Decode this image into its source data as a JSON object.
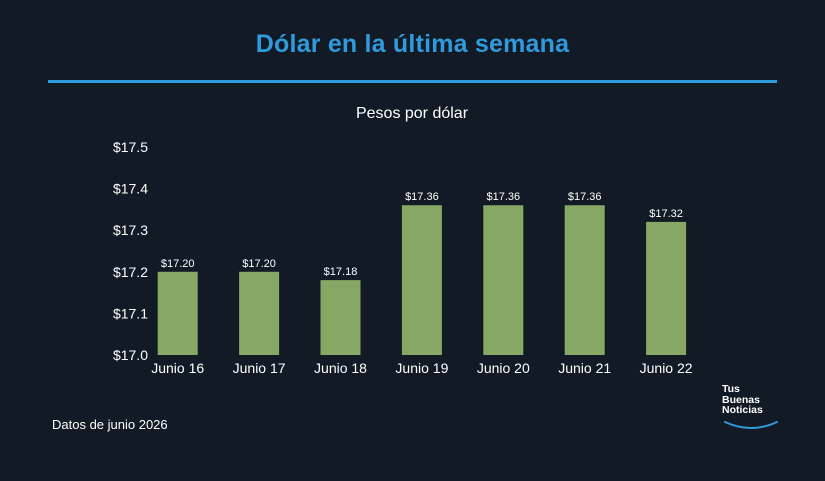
{
  "header": {
    "title": "Dólar en la última semana"
  },
  "footer": {
    "note": "Datos de junio 2026"
  },
  "logo": {
    "lines": [
      "Tus",
      "Buenas",
      "Noticias"
    ],
    "swoosh_color": "#2f9bdc"
  },
  "colors": {
    "bar": "#87a765",
    "accent": "#2f9bdc",
    "background": "#121a26"
  },
  "chart_data": {
    "type": "bar",
    "title": "Pesos por dólar",
    "categories": [
      "Junio 16",
      "Junio 17",
      "Junio 18",
      "Junio 19",
      "Junio 20",
      "Junio 21",
      "Junio 22"
    ],
    "values": [
      17.2,
      17.2,
      17.18,
      17.36,
      17.36,
      17.36,
      17.32
    ],
    "data_labels": [
      "$17.20",
      "$17.20",
      "$17.18",
      "$17.36",
      "$17.36",
      "$17.36",
      "$17.32"
    ],
    "ylim": [
      17.0,
      17.5
    ],
    "yticks": [
      17.0,
      17.1,
      17.2,
      17.3,
      17.4,
      17.5
    ],
    "ytick_labels": [
      "$17.0",
      "$17.1",
      "$17.2",
      "$17.3",
      "$17.4",
      "$17.5"
    ],
    "xlabel": "",
    "ylabel": "",
    "grid": false,
    "legend": "none"
  }
}
